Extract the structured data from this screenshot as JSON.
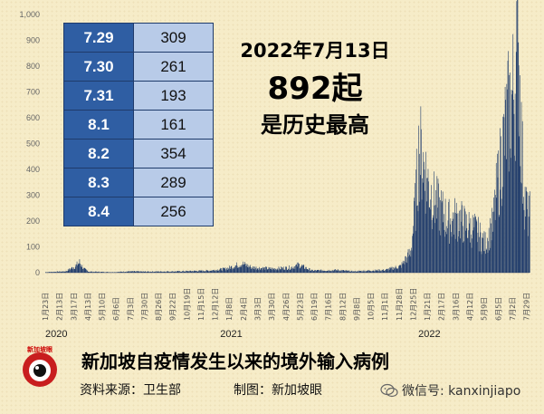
{
  "chart_data": {
    "type": "bar",
    "ylim": [
      0,
      1000
    ],
    "yticks": [
      "0",
      "100",
      "200",
      "300",
      "400",
      "500",
      "600",
      "700",
      "800",
      "900",
      "1,000"
    ],
    "x_tick_labels": [
      "1月23日",
      "2月13日",
      "3月17日",
      "4月13日",
      "5月10日",
      "6月6日",
      "7月3日",
      "7月30日",
      "8月26日",
      "9月22日",
      "10月19日",
      "11月15日",
      "12月12日",
      "1月8日",
      "2月4日",
      "3月3日",
      "3月30日",
      "4月26日",
      "5月23日",
      "6月19日",
      "7月16日",
      "8月12日",
      "9月8日",
      "10月5日",
      "11月1日",
      "11月28日",
      "12月25日",
      "1月21日",
      "2月17日",
      "3月16日",
      "4月12日",
      "5月9日",
      "6月5日",
      "7月2日",
      "7月29日"
    ],
    "year_labels": [
      "2020",
      "2021",
      "2022"
    ],
    "series": [
      {
        "points": [
          [
            "2020-01-23",
            2
          ],
          [
            "2020-03-01",
            5
          ],
          [
            "2020-03-20",
            25
          ],
          [
            "2020-03-28",
            40
          ],
          [
            "2020-04-05",
            15
          ],
          [
            "2020-04-15",
            4
          ],
          [
            "2020-06-01",
            2
          ],
          [
            "2020-07-01",
            5
          ],
          [
            "2020-08-01",
            4
          ],
          [
            "2020-10-01",
            5
          ],
          [
            "2020-12-01",
            8
          ],
          [
            "2021-01-01",
            15
          ],
          [
            "2021-02-01",
            35
          ],
          [
            "2021-02-20",
            20
          ],
          [
            "2021-04-01",
            15
          ],
          [
            "2021-05-05",
            20
          ],
          [
            "2021-05-20",
            30
          ],
          [
            "2021-06-15",
            8
          ],
          [
            "2021-08-01",
            10
          ],
          [
            "2021-09-01",
            5
          ],
          [
            "2021-10-01",
            8
          ],
          [
            "2021-11-01",
            10
          ],
          [
            "2021-12-01",
            25
          ],
          [
            "2021-12-20",
            80
          ],
          [
            "2021-12-28",
            250
          ],
          [
            "2022-01-05",
            480
          ],
          [
            "2022-01-12",
            430
          ],
          [
            "2022-01-20",
            360
          ],
          [
            "2022-02-01",
            280
          ],
          [
            "2022-02-15",
            240
          ],
          [
            "2022-03-01",
            200
          ],
          [
            "2022-03-20",
            210
          ],
          [
            "2022-04-05",
            180
          ],
          [
            "2022-04-25",
            160
          ],
          [
            "2022-05-10",
            110
          ],
          [
            "2022-05-25",
            180
          ],
          [
            "2022-06-05",
            360
          ],
          [
            "2022-06-15",
            500
          ],
          [
            "2022-06-25",
            620
          ],
          [
            "2022-07-05",
            700
          ],
          [
            "2022-07-13",
            892
          ],
          [
            "2022-07-20",
            450
          ],
          [
            "2022-07-25",
            300
          ],
          [
            "2022-07-31",
            220
          ]
        ]
      }
    ]
  },
  "table": {
    "rows": [
      {
        "date": "7.29",
        "value": "309"
      },
      {
        "date": "7.30",
        "value": "261"
      },
      {
        "date": "7.31",
        "value": "193"
      },
      {
        "date": "8.1",
        "value": "161"
      },
      {
        "date": "8.2",
        "value": "354"
      },
      {
        "date": "8.3",
        "value": "289"
      },
      {
        "date": "8.4",
        "value": "256"
      }
    ]
  },
  "headline": {
    "date": "2022年7月13日",
    "count": "892起",
    "record": "是历史最高"
  },
  "footer": {
    "title": "新加坡自疫情发生以来的境外输入病例",
    "source": "资料来源：卫生部",
    "maker": "制图：新加坡眼",
    "wechat": "微信号: kanxinjiapo",
    "logo_text": "新加坡眼"
  },
  "colors": {
    "bar": "#1f3b6b",
    "date_cell": "#2f5ea3",
    "value_cell": "#b8cbe8"
  }
}
